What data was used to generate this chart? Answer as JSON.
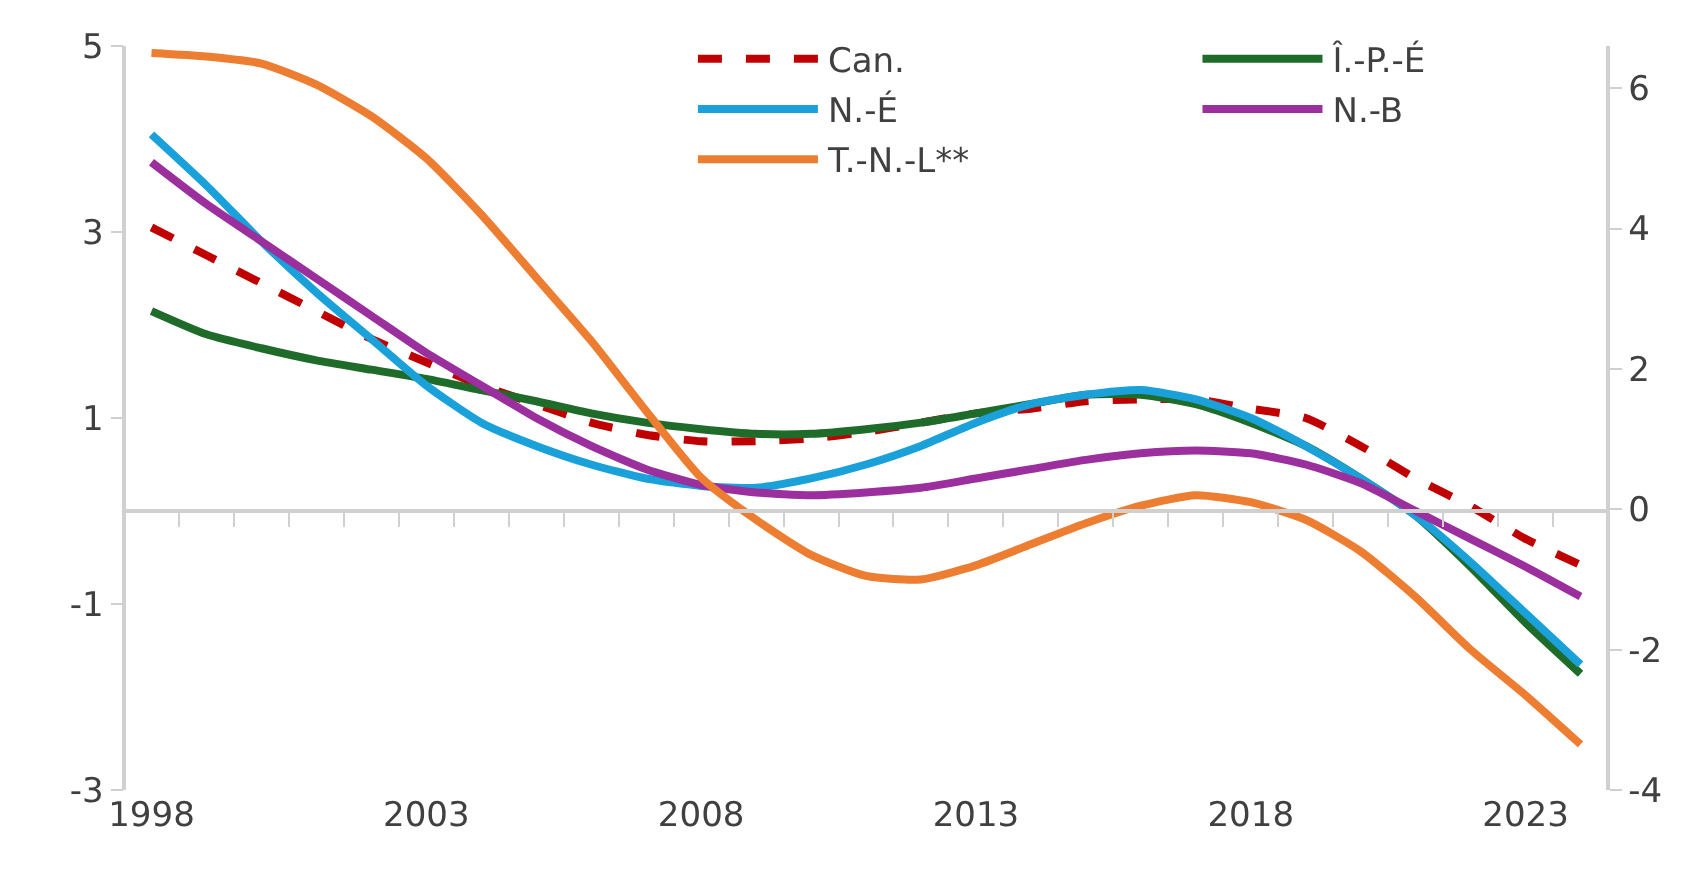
{
  "chart_data": {
    "type": "line",
    "x": [
      1998,
      1999,
      2000,
      2001,
      2002,
      2003,
      2004,
      2005,
      2006,
      2007,
      2008,
      2009,
      2010,
      2011,
      2012,
      2013,
      2014,
      2015,
      2016,
      2017,
      2018,
      2019,
      2020,
      2021,
      2022,
      2023,
      2024
    ],
    "series": [
      {
        "name": "Can.",
        "color": "#c00000",
        "line_style": "dashed",
        "values": [
          3.05,
          2.75,
          2.45,
          2.15,
          1.85,
          1.6,
          1.35,
          1.15,
          0.95,
          0.82,
          0.75,
          0.75,
          0.78,
          0.85,
          0.95,
          1.05,
          1.1,
          1.18,
          1.2,
          1.2,
          1.1,
          1.0,
          0.7,
          0.35,
          0.05,
          -0.3,
          -0.58
        ]
      },
      {
        "name": "Î.-P.-É",
        "color": "#1e6b2a",
        "values": [
          2.15,
          1.9,
          1.75,
          1.62,
          1.52,
          1.42,
          1.3,
          1.18,
          1.05,
          0.95,
          0.88,
          0.83,
          0.83,
          0.88,
          0.95,
          1.05,
          1.15,
          1.25,
          1.25,
          1.15,
          0.95,
          0.7,
          0.35,
          -0.05,
          -0.6,
          -1.2,
          -1.75
        ]
      },
      {
        "name": "N.-É",
        "color": "#1ba1d9",
        "values": [
          4.05,
          3.5,
          2.9,
          2.35,
          1.85,
          1.35,
          0.95,
          0.7,
          0.5,
          0.35,
          0.27,
          0.25,
          0.35,
          0.5,
          0.7,
          0.95,
          1.15,
          1.25,
          1.3,
          1.2,
          1.0,
          0.7,
          0.35,
          -0.05,
          -0.55,
          -1.1,
          -1.65
        ]
      },
      {
        "name": "N.-B",
        "color": "#9b2f9e",
        "values": [
          3.75,
          3.3,
          2.9,
          2.5,
          2.1,
          1.7,
          1.35,
          1.0,
          0.7,
          0.45,
          0.28,
          0.2,
          0.17,
          0.2,
          0.25,
          0.35,
          0.45,
          0.55,
          0.62,
          0.65,
          0.62,
          0.5,
          0.3,
          0.0,
          -0.3,
          -0.6,
          -0.92
        ]
      },
      {
        "name": "T.-N.-L**",
        "color": "#ed7d31",
        "axis": "y2",
        "values": [
          6.5,
          6.45,
          6.35,
          6.05,
          5.6,
          5.0,
          4.2,
          3.3,
          2.4,
          1.4,
          0.45,
          -0.15,
          -0.65,
          -0.95,
          -1.0,
          -0.8,
          -0.5,
          -0.2,
          0.05,
          0.2,
          0.1,
          -0.15,
          -0.6,
          -1.25,
          -2.0,
          -2.65,
          -3.35
        ]
      }
    ],
    "xlim": [
      1997.5,
      2024.5
    ],
    "xticks": [
      1998,
      2003,
      2008,
      2013,
      2018,
      2023
    ],
    "ylim": [
      -3,
      5
    ],
    "yticks": [
      -3,
      -1,
      1,
      3,
      5
    ],
    "y2lim": [
      -4,
      6.6
    ],
    "y2ticks": [
      -4,
      -2,
      0,
      2,
      4,
      6
    ],
    "ref_lines": [
      {
        "axis": "y",
        "value": 0,
        "color": "#d0d0d0"
      }
    ],
    "legend": "top",
    "line_style": "solid",
    "marker": "none"
  }
}
